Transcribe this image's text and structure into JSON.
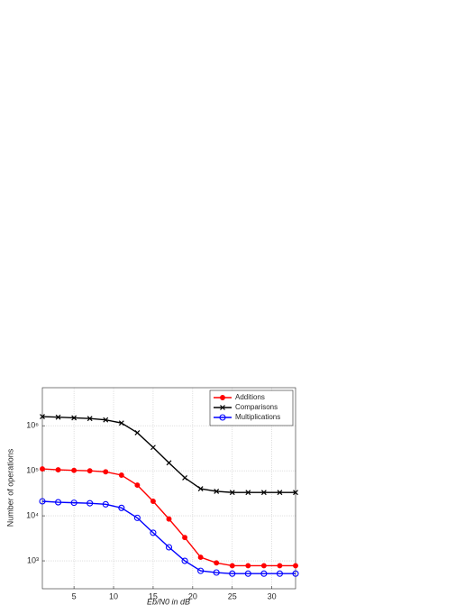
{
  "chart_data": {
    "type": "line",
    "xlabel": "Eb/N0 in dB",
    "ylabel": "Number of operations",
    "x": [
      1,
      3,
      5,
      7,
      9,
      11,
      13,
      15,
      17,
      19,
      21,
      23,
      25,
      27,
      29,
      31,
      33
    ],
    "series": [
      {
        "name": "Additions",
        "color": "#ff0000",
        "marker": "filled-circle",
        "values": [
          110000,
          105000,
          102000,
          100000,
          95000,
          80000,
          48000,
          21000,
          8500,
          3300,
          1200,
          900,
          780,
          780,
          780,
          780,
          780
        ]
      },
      {
        "name": "Comparisons",
        "color": "#000000",
        "marker": "x",
        "values": [
          1600000,
          1550000,
          1500000,
          1450000,
          1350000,
          1150000,
          700000,
          330000,
          150000,
          70000,
          40000,
          35000,
          33000,
          33000,
          33000,
          33000,
          33000
        ]
      },
      {
        "name": "Multiplications",
        "color": "#0000ff",
        "marker": "open-circle",
        "values": [
          21000,
          20000,
          19500,
          19000,
          18000,
          15000,
          9000,
          4200,
          2000,
          1000,
          600,
          550,
          520,
          520,
          520,
          520,
          520
        ]
      }
    ],
    "xlim": [
      1,
      33
    ],
    "xticks": [
      5,
      10,
      15,
      20,
      25,
      30
    ],
    "ylim": [
      240,
      7000000
    ],
    "log_y": true,
    "yticks": [
      {
        "value": 1000,
        "label": "10³"
      },
      {
        "value": 10000,
        "label": "10⁴"
      },
      {
        "value": 100000,
        "label": "10⁵"
      },
      {
        "value": 1000000,
        "label": "10⁶"
      }
    ],
    "grid": true,
    "legend": "upper right"
  }
}
